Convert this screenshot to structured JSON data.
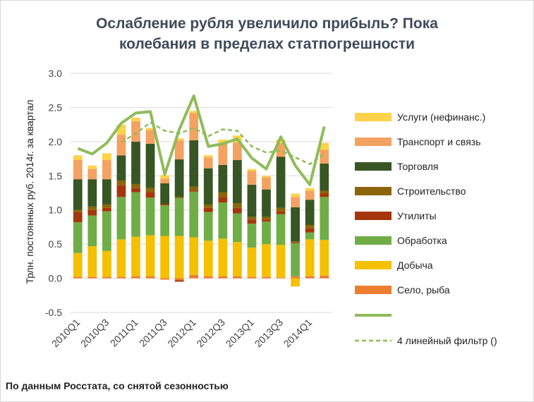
{
  "chart_data": {
    "type": "bar",
    "stacked": true,
    "title_line1": "Ослабление рубля увеличило прибыль? Пока",
    "title_line2": "колебания в пределах статпогрешности",
    "ylabel": "Трлн. постоянных руб. 2014г. за квартал",
    "ylim": [
      -0.5,
      3.0
    ],
    "yticks": [
      "-0.5",
      "0.0",
      "0.5",
      "1.0",
      "1.5",
      "2.0",
      "2.5",
      "3.0"
    ],
    "ytick_values": [
      -0.5,
      0.0,
      0.5,
      1.0,
      1.5,
      2.0,
      2.5,
      3.0
    ],
    "grid": true,
    "legend_position": "right",
    "categories": [
      "2010Q1",
      "2010Q2",
      "2010Q3",
      "2010Q4",
      "2011Q1",
      "2011Q2",
      "2011Q3",
      "2011Q4",
      "2012Q1",
      "2012Q2",
      "2012Q3",
      "2012Q4",
      "2013Q1",
      "2013Q2",
      "2013Q3",
      "2013Q4",
      "2014Q1",
      "2014Q2"
    ],
    "xtick_labels": [
      "2010Q1",
      "2010Q3",
      "2011Q1",
      "2011Q3",
      "2012Q1",
      "2012Q3",
      "2013Q1",
      "2013Q3",
      "2014Q1"
    ],
    "series": [
      {
        "name": "Село, рыба",
        "color": "#ed7d31",
        "values": [
          0.02,
          0.02,
          0.02,
          0.02,
          0.03,
          0.03,
          -0.02,
          -0.03,
          0.05,
          0.03,
          0.03,
          0.03,
          0.02,
          0.02,
          0.01,
          0.03,
          0.03,
          0.04
        ]
      },
      {
        "name": "Добыча",
        "color": "#f5c000",
        "values": [
          0.35,
          0.45,
          0.38,
          0.55,
          0.58,
          0.6,
          0.62,
          0.62,
          0.55,
          0.52,
          0.55,
          0.5,
          0.43,
          0.48,
          0.48,
          -0.12,
          0.54,
          0.52
        ]
      },
      {
        "name": "Обработка",
        "color": "#70ad47",
        "values": [
          0.45,
          0.45,
          0.58,
          0.62,
          0.65,
          0.55,
          0.45,
          0.55,
          0.67,
          0.42,
          0.53,
          0.42,
          0.35,
          0.33,
          0.45,
          0.48,
          0.1,
          0.63
        ]
      },
      {
        "name": "Утилиты",
        "color": "#a5360c",
        "values": [
          0.15,
          0.08,
          0.05,
          0.17,
          0.06,
          0.08,
          0.02,
          -0.02,
          0.02,
          0.06,
          0.08,
          0.08,
          0.06,
          0.03,
          0.04,
          0.01,
          0.06,
          0.05
        ]
      },
      {
        "name": "Строительство",
        "color": "#8b6508",
        "values": [
          0.03,
          0.05,
          0.05,
          0.07,
          0.06,
          0.06,
          0.0,
          0.02,
          0.05,
          0.05,
          0.07,
          0.07,
          0.04,
          0.04,
          0.05,
          0.02,
          0.05,
          0.04
        ]
      },
      {
        "name": "Торговля",
        "color": "#375623",
        "values": [
          0.45,
          0.4,
          0.37,
          0.37,
          0.62,
          0.65,
          0.3,
          0.55,
          0.68,
          0.53,
          0.4,
          0.63,
          0.47,
          0.4,
          0.75,
          0.5,
          0.37,
          0.4
        ]
      },
      {
        "name": "Транспорт и связь",
        "color": "#f4a261",
        "values": [
          0.28,
          0.15,
          0.28,
          0.3,
          0.3,
          0.2,
          0.07,
          0.28,
          0.4,
          0.16,
          0.32,
          0.26,
          0.2,
          0.18,
          0.2,
          0.15,
          0.13,
          0.2
        ]
      },
      {
        "name": "Услуги (нефинанс.)",
        "color": "#ffd24c",
        "values": [
          0.07,
          0.05,
          0.1,
          0.15,
          0.05,
          0.03,
          0.05,
          0.03,
          0.03,
          0.03,
          0.05,
          0.1,
          0.03,
          0.02,
          0.05,
          0.05,
          0.04,
          0.1
        ]
      }
    ],
    "lines": [
      {
        "name": "",
        "color": "#8fbc5a",
        "style": "solid",
        "values": [
          1.9,
          1.82,
          1.98,
          2.27,
          2.42,
          2.44,
          1.52,
          2.18,
          2.67,
          1.93,
          1.97,
          2.04,
          1.76,
          1.6,
          2.07,
          1.65,
          1.37,
          2.22
        ]
      },
      {
        "name": "4 линейный фильтр ()",
        "color": "#8fbc5a",
        "style": "dashed",
        "values": [
          null,
          null,
          null,
          1.99,
          2.12,
          2.28,
          2.16,
          2.12,
          2.2,
          2.08,
          2.18,
          2.16,
          1.93,
          1.84,
          1.87,
          1.77,
          1.67,
          1.82
        ]
      }
    ]
  },
  "footnote": "По данным Росстата, со снятой сезонностью"
}
